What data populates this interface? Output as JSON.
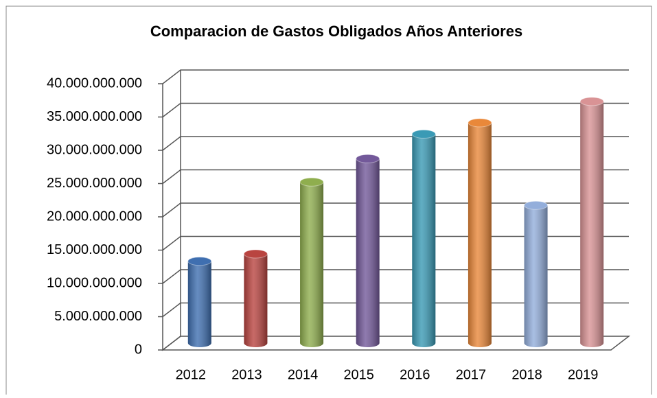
{
  "chart_data": {
    "type": "bar3d",
    "title": "Comparacion de Gastos Obligados Años Anteriores",
    "categories": [
      "2012",
      "2013",
      "2014",
      "2015",
      "2016",
      "2017",
      "2018",
      "2019"
    ],
    "values": [
      12300000000,
      13400000000,
      24200000000,
      27700000000,
      31400000000,
      33100000000,
      20700000000,
      36300000000
    ],
    "colors": [
      "#3f6fb0",
      "#b94440",
      "#8fae4e",
      "#73599a",
      "#3a9ab5",
      "#e9883a",
      "#93aedb",
      "#d99395"
    ],
    "ylim": [
      0,
      40000000000
    ],
    "yticks": [
      0,
      {
        "value": 5000000000,
        "label": "5.000.000.000"
      },
      {
        "value": 10000000000,
        "label": "10.000.000.000"
      },
      {
        "value": 15000000000,
        "label": "15.000.000.000"
      },
      {
        "value": 20000000000,
        "label": "20.000.000.000"
      },
      {
        "value": 25000000000,
        "label": "25.000.000.000"
      },
      {
        "value": 30000000000,
        "label": "30.000.000.000"
      },
      {
        "value": 35000000000,
        "label": "35.000.000.000"
      },
      {
        "value": 40000000000,
        "label": "40.000.000.000"
      }
    ],
    "grid": true
  }
}
